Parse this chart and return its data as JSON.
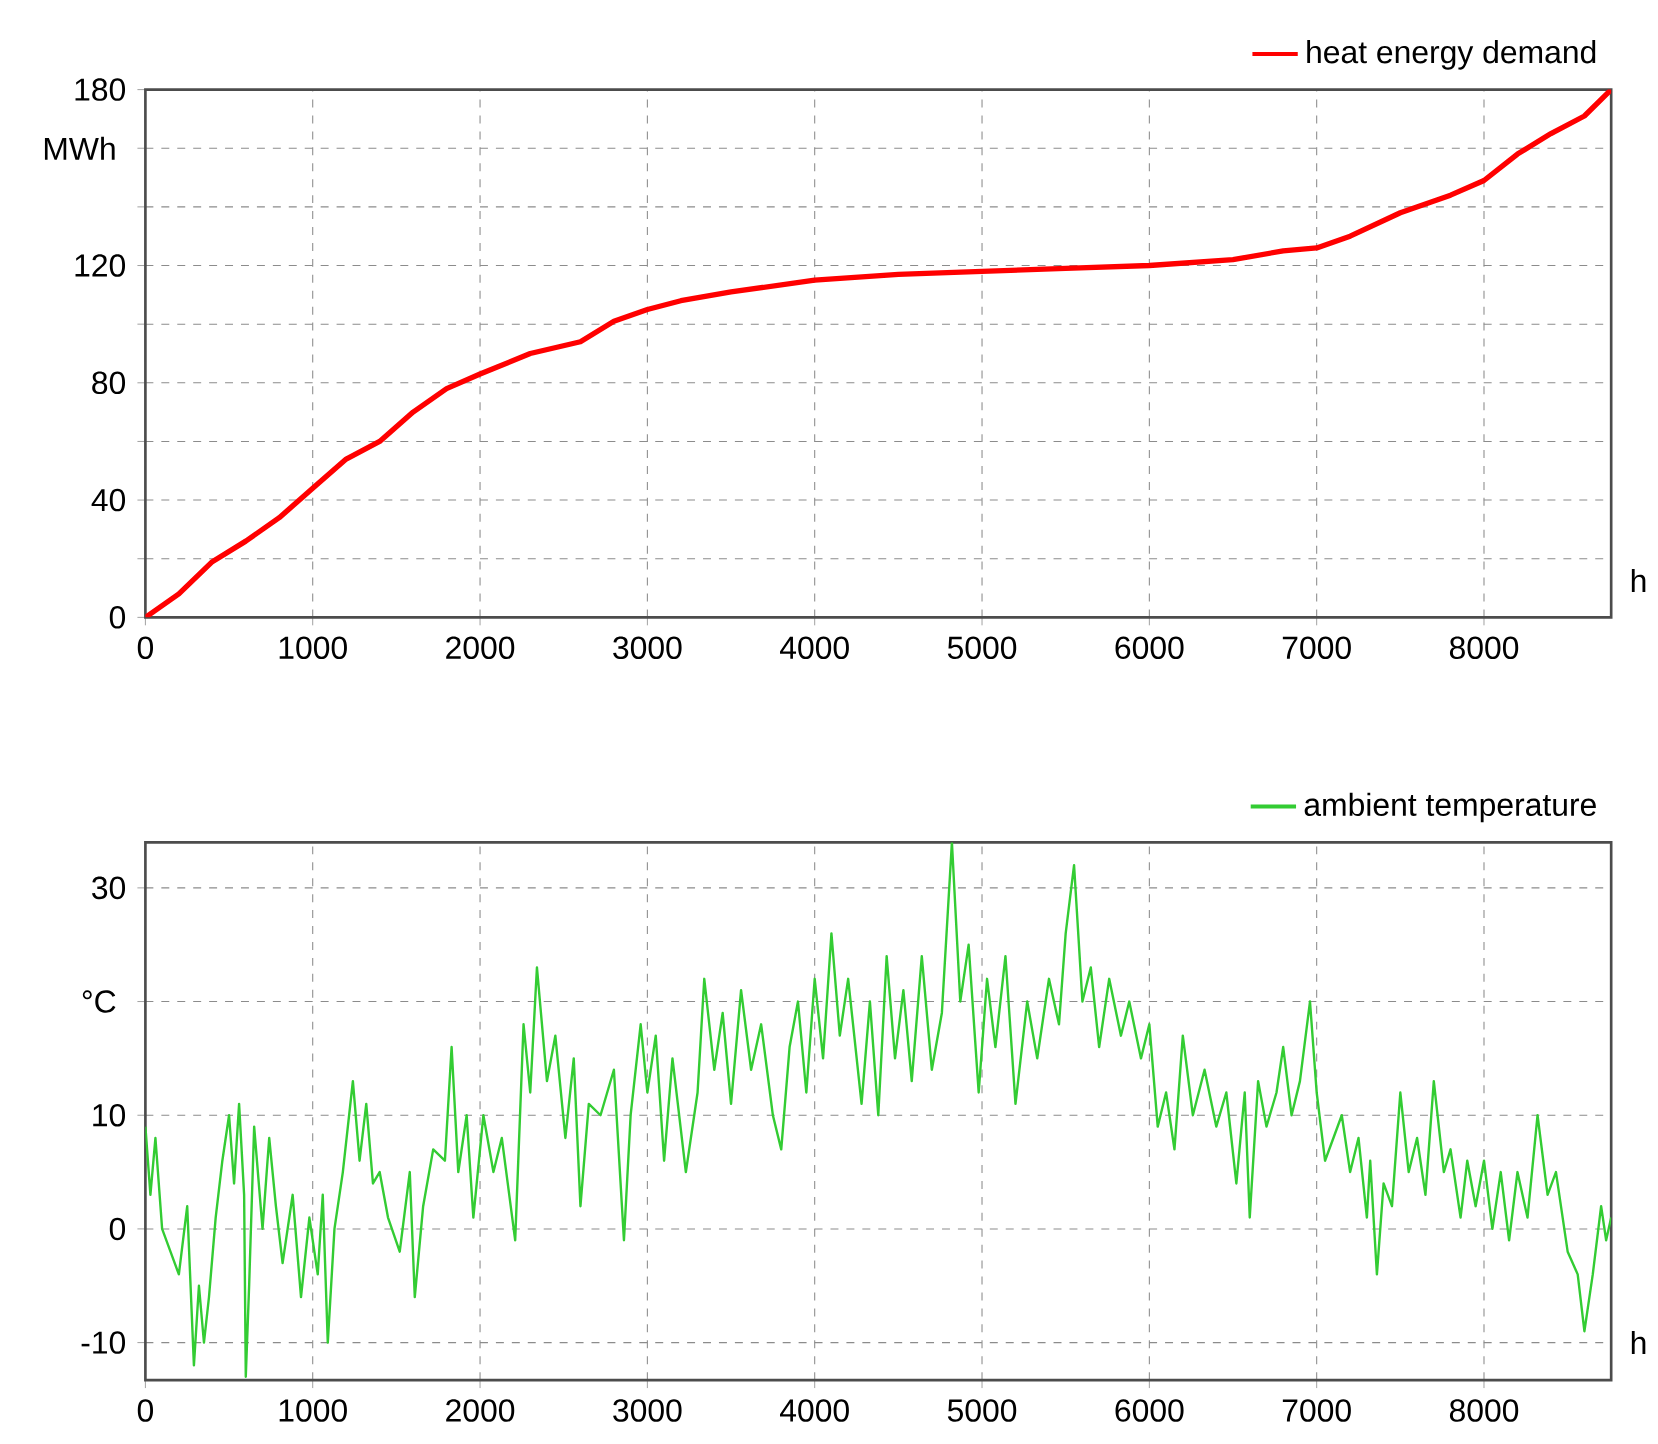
{
  "chart_data": [
    {
      "type": "line",
      "xlabel": "h",
      "ylabel": "MWh",
      "xlim": [
        0,
        8760
      ],
      "ylim": [
        0,
        180
      ],
      "xticks": [
        0,
        1000,
        2000,
        3000,
        4000,
        5000,
        6000,
        7000,
        8000
      ],
      "yticks": [
        0,
        {
          "value": 20,
          "label": null
        },
        40,
        {
          "value": 60,
          "label": null
        },
        80,
        {
          "value": 100,
          "label": null
        },
        120,
        {
          "value": 140,
          "label": null
        },
        {
          "value": 160,
          "label": null
        },
        180
      ],
      "grid": true,
      "legend": "top right",
      "marker": "none",
      "series": [
        {
          "name": "heat energy demand",
          "color": "#ff0000",
          "x": [
            0,
            200,
            400,
            600,
            800,
            1000,
            1200,
            1400,
            1600,
            1800,
            2000,
            2300,
            2600,
            2800,
            3000,
            3200,
            3500,
            4000,
            4500,
            5000,
            5500,
            6000,
            6500,
            6800,
            7000,
            7200,
            7500,
            7800,
            8000,
            8200,
            8400,
            8600,
            8760
          ],
          "values": [
            0,
            8,
            19,
            26,
            34,
            44,
            54,
            60,
            70,
            78,
            83,
            90,
            94,
            101,
            105,
            108,
            111,
            115,
            117,
            118,
            119,
            120,
            122,
            125,
            126,
            130,
            138,
            144,
            149,
            158,
            165,
            171,
            180
          ]
        }
      ]
    },
    {
      "type": "line",
      "xlabel": "h",
      "ylabel": "°C",
      "xlim": [
        0,
        8760
      ],
      "ylim": [
        -13.3,
        34
      ],
      "xticks": [
        0,
        1000,
        2000,
        3000,
        4000,
        5000,
        6000,
        7000,
        8000
      ],
      "yticks": [
        -10,
        0,
        10,
        {
          "value": 20,
          "label": null
        },
        30
      ],
      "grid": true,
      "legend": "top right",
      "marker": "none",
      "series": [
        {
          "name": "ambient temperature",
          "color": "#33cc33",
          "x": [
            0,
            30,
            60,
            100,
            150,
            200,
            250,
            290,
            320,
            350,
            380,
            420,
            460,
            500,
            530,
            560,
            590,
            600,
            620,
            650,
            700,
            740,
            780,
            820,
            880,
            930,
            980,
            1030,
            1060,
            1090,
            1130,
            1180,
            1240,
            1280,
            1320,
            1360,
            1400,
            1450,
            1520,
            1580,
            1610,
            1660,
            1720,
            1790,
            1830,
            1870,
            1920,
            1960,
            2020,
            2080,
            2130,
            2210,
            2260,
            2300,
            2340,
            2400,
            2450,
            2510,
            2560,
            2600,
            2650,
            2720,
            2800,
            2860,
            2900,
            2960,
            3000,
            3050,
            3100,
            3150,
            3230,
            3300,
            3340,
            3400,
            3450,
            3500,
            3560,
            3620,
            3680,
            3750,
            3800,
            3850,
            3900,
            3950,
            4000,
            4050,
            4100,
            4150,
            4200,
            4280,
            4330,
            4380,
            4430,
            4480,
            4530,
            4580,
            4640,
            4700,
            4760,
            4820,
            4870,
            4920,
            4980,
            5030,
            5080,
            5140,
            5200,
            5270,
            5330,
            5400,
            5460,
            5500,
            5550,
            5600,
            5650,
            5700,
            5760,
            5830,
            5880,
            5950,
            6000,
            6050,
            6100,
            6150,
            6200,
            6260,
            6330,
            6400,
            6460,
            6520,
            6570,
            6600,
            6650,
            6700,
            6760,
            6800,
            6850,
            6900,
            6960,
            7000,
            7050,
            7100,
            7150,
            7200,
            7250,
            7300,
            7320,
            7360,
            7400,
            7450,
            7500,
            7550,
            7600,
            7650,
            7700,
            7760,
            7800,
            7860,
            7900,
            7950,
            8000,
            8050,
            8100,
            8150,
            8200,
            8260,
            8320,
            8380,
            8430,
            8500,
            8560,
            8600,
            8650,
            8700,
            8730,
            8760
          ],
          "values": [
            9,
            3,
            8,
            0,
            -2,
            -4,
            2,
            -12,
            -5,
            -10,
            -6,
            1,
            6,
            10,
            4,
            11,
            3,
            -13,
            -5,
            9,
            0,
            8,
            2,
            -3,
            3,
            -6,
            1,
            -4,
            3,
            -10,
            0,
            5,
            13,
            6,
            11,
            4,
            5,
            1,
            -2,
            5,
            -6,
            2,
            7,
            6,
            16,
            5,
            10,
            1,
            10,
            5,
            8,
            -1,
            18,
            12,
            23,
            13,
            17,
            8,
            15,
            2,
            11,
            10,
            14,
            -1,
            10,
            18,
            12,
            17,
            6,
            15,
            5,
            12,
            22,
            14,
            19,
            11,
            21,
            14,
            18,
            10,
            7,
            16,
            20,
            12,
            22,
            15,
            26,
            17,
            22,
            11,
            20,
            10,
            24,
            15,
            21,
            13,
            24,
            14,
            19,
            34,
            20,
            25,
            12,
            22,
            16,
            24,
            11,
            20,
            15,
            22,
            18,
            26,
            32,
            20,
            23,
            16,
            22,
            17,
            20,
            15,
            18,
            9,
            12,
            7,
            17,
            10,
            14,
            9,
            12,
            4,
            12,
            1,
            13,
            9,
            12,
            16,
            10,
            13,
            20,
            12,
            6,
            8,
            10,
            5,
            8,
            1,
            6,
            -4,
            4,
            2,
            12,
            5,
            8,
            3,
            13,
            5,
            7,
            1,
            6,
            2,
            6,
            0,
            5,
            -1,
            5,
            1,
            10,
            3,
            5,
            -2,
            -4,
            -9,
            -4,
            2,
            -1,
            1
          ]
        }
      ]
    }
  ]
}
